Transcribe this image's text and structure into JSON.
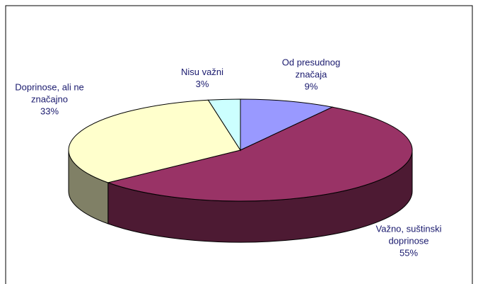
{
  "chart_data": {
    "type": "pie",
    "categories": [
      "Od presudnog značaja",
      "Važno, suštinski doprinose",
      "Doprinose, ali ne značajno",
      "Nisu važni"
    ],
    "values": [
      9,
      55,
      33,
      3
    ],
    "value_labels": [
      "9%",
      "55%",
      "33%",
      "3%"
    ],
    "colors": [
      "#9999ff",
      "#993366",
      "#ffffcc",
      "#ccffff"
    ],
    "side_colors": [
      "#4d4d80",
      "#4d1a33",
      "#808066",
      "#668080"
    ]
  }
}
